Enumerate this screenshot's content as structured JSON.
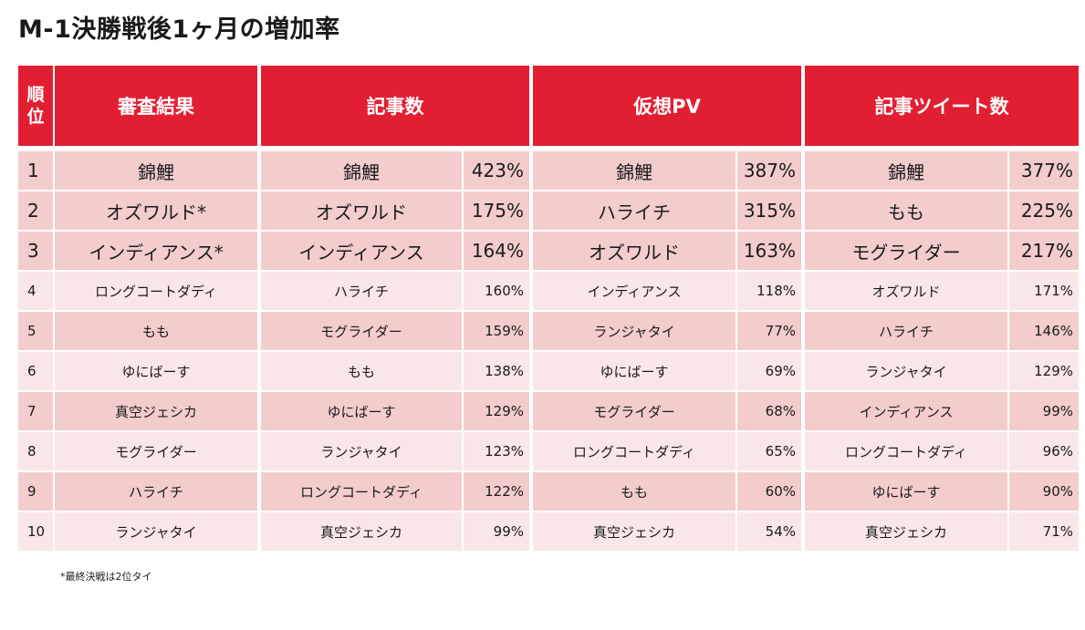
{
  "title": "M-1決勝戦後1ヶ月の増加率",
  "header": {
    "rank_line1": "順",
    "rank_line2": "位",
    "judging": "審査結果",
    "articles": "記事数",
    "pv": "仮想PV",
    "tweets": "記事ツイート数"
  },
  "rows": [
    {
      "rank": "1",
      "judging": "錦鯉",
      "articles_name": "錦鯉",
      "articles_pct": "423%",
      "pv_name": "錦鯉",
      "pv_pct": "387%",
      "tweets_name": "錦鯉",
      "tweets_pct": "377%"
    },
    {
      "rank": "2",
      "judging": "オズワルド*",
      "articles_name": "オズワルド",
      "articles_pct": "175%",
      "pv_name": "ハライチ",
      "pv_pct": "315%",
      "tweets_name": "もも",
      "tweets_pct": "225%"
    },
    {
      "rank": "3",
      "judging": "インディアンス*",
      "articles_name": "インディアンス",
      "articles_pct": "164%",
      "pv_name": "オズワルド",
      "pv_pct": "163%",
      "tweets_name": "モグライダー",
      "tweets_pct": "217%"
    },
    {
      "rank": "4",
      "judging": "ロングコートダディ",
      "articles_name": "ハライチ",
      "articles_pct": "160%",
      "pv_name": "インディアンス",
      "pv_pct": "118%",
      "tweets_name": "オズワルド",
      "tweets_pct": "171%"
    },
    {
      "rank": "5",
      "judging": "もも",
      "articles_name": "モグライダー",
      "articles_pct": "159%",
      "pv_name": "ランジャタイ",
      "pv_pct": "77%",
      "tweets_name": "ハライチ",
      "tweets_pct": "146%"
    },
    {
      "rank": "6",
      "judging": "ゆにばーす",
      "articles_name": "もも",
      "articles_pct": "138%",
      "pv_name": "ゆにばーす",
      "pv_pct": "69%",
      "tweets_name": "ランジャタイ",
      "tweets_pct": "129%"
    },
    {
      "rank": "7",
      "judging": "真空ジェシカ",
      "articles_name": "ゆにばーす",
      "articles_pct": "129%",
      "pv_name": "モグライダー",
      "pv_pct": "68%",
      "tweets_name": "インディアンス",
      "tweets_pct": "99%"
    },
    {
      "rank": "8",
      "judging": "モグライダー",
      "articles_name": "ランジャタイ",
      "articles_pct": "123%",
      "pv_name": "ロングコートダディ",
      "pv_pct": "65%",
      "tweets_name": "ロングコートダディ",
      "tweets_pct": "96%"
    },
    {
      "rank": "9",
      "judging": "ハライチ",
      "articles_name": "ロングコートダディ",
      "articles_pct": "122%",
      "pv_name": "もも",
      "pv_pct": "60%",
      "tweets_name": "ゆにばーす",
      "tweets_pct": "90%"
    },
    {
      "rank": "10",
      "judging": "ランジャタイ",
      "articles_name": "真空ジェシカ",
      "articles_pct": "99%",
      "pv_name": "真空ジェシカ",
      "pv_pct": "54%",
      "tweets_name": "真空ジェシカ",
      "tweets_pct": "71%"
    }
  ],
  "footnote": "*最終決戦は2位タイ",
  "colors": {
    "header_red": "#e21f32",
    "row_dark": "#f3cccc",
    "row_light": "#f9e6e6"
  }
}
